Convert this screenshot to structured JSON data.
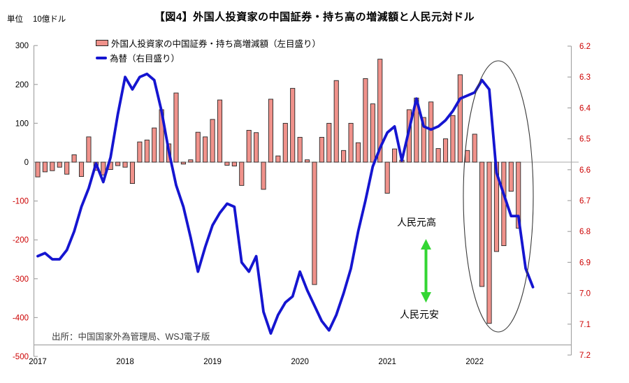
{
  "header": {
    "title": "【図4】外国人投資家の中国証券・持ち高の増減額と人民元対ドル",
    "unit_prefix": "単位",
    "unit_value": "10億ドル"
  },
  "legend": {
    "bars_label": "外国人投資家の中国証券・持ち高増減額（左目盛り）",
    "line_label": "為替（右目盛り）"
  },
  "annotations": {
    "yuan_strong": "人民元高",
    "yuan_weak": "人民元安",
    "source": "出所：中国国家外為管理局、WSJ電子版"
  },
  "colors": {
    "bar_fill": "#F0928B",
    "bar_stroke": "#262626",
    "line_blue": "#1515D0",
    "axis_gray": "#A6A6A6",
    "zero_line": "#AAAAAA",
    "red_text": "#CC0000",
    "black_text": "#000000",
    "green_arrow": "#33D633",
    "ellipse_stroke": "#3A3A3A"
  },
  "chart_data": {
    "type": "bar",
    "combo": "monthly bars (left axis) + line (right axis)",
    "title": "【図4】外国人投資家の中国証券・持ち高の増減額と人民元対ドル",
    "x_start_month": "2017-01",
    "x_year_labels": [
      "2017",
      "2018",
      "2019",
      "2020",
      "2021",
      "2022"
    ],
    "left_axis": {
      "label": "10億ドル",
      "ticks": [
        300,
        200,
        100,
        0,
        -100,
        -200,
        -300,
        -400,
        -500
      ],
      "range": [
        -500,
        300
      ]
    },
    "right_axis": {
      "ticks": [
        "6.2",
        "6.3",
        "6.4",
        "6.5",
        "6.6",
        "6.7",
        "6.8",
        "6.9",
        "7.0",
        "7.1",
        "7.2"
      ],
      "range": [
        6.2,
        7.2
      ],
      "inverted": true
    },
    "series": [
      {
        "name": "外国人投資家の中国証券・持ち高増減額（左目盛り）",
        "type": "bar",
        "axis": "left",
        "values": [
          -38,
          -25,
          -22,
          -13,
          -31,
          19,
          -37,
          65,
          -21,
          -33,
          -19,
          -9,
          -13,
          -55,
          52,
          57,
          88,
          135,
          47,
          178,
          -5,
          6,
          77,
          65,
          110,
          160,
          -8,
          -10,
          -60,
          82,
          76,
          -70,
          162,
          16,
          100,
          190,
          64,
          6,
          -315,
          64,
          100,
          210,
          30,
          100,
          50,
          215,
          150,
          265,
          -80,
          34,
          5,
          135,
          165,
          115,
          155,
          35,
          60,
          120,
          225,
          30,
          72,
          -320,
          -415,
          -230,
          -215,
          -75,
          -170
        ]
      },
      {
        "name": "為替（右目盛り）",
        "type": "line",
        "axis": "right",
        "values": [
          6.88,
          6.87,
          6.89,
          6.89,
          6.86,
          6.8,
          6.72,
          6.66,
          6.58,
          6.64,
          6.56,
          6.42,
          6.3,
          6.34,
          6.3,
          6.29,
          6.31,
          6.41,
          6.54,
          6.65,
          6.72,
          6.82,
          6.93,
          6.85,
          6.78,
          6.74,
          6.71,
          6.72,
          6.9,
          6.93,
          6.88,
          7.06,
          7.13,
          7.07,
          7.03,
          7.01,
          6.93,
          6.99,
          7.04,
          7.09,
          7.12,
          7.07,
          7.0,
          6.92,
          6.8,
          6.7,
          6.59,
          6.53,
          6.48,
          6.46,
          6.57,
          6.47,
          6.37,
          6.46,
          6.47,
          6.46,
          6.44,
          6.41,
          6.37,
          6.36,
          6.35,
          6.31,
          6.34,
          6.61,
          6.68,
          6.75,
          6.75,
          6.92,
          6.98
        ]
      }
    ],
    "highlight_ellipse": "around 2022 (Feb–Sep) sharp outflows and yuan depreciation",
    "grid": "zero line only"
  }
}
